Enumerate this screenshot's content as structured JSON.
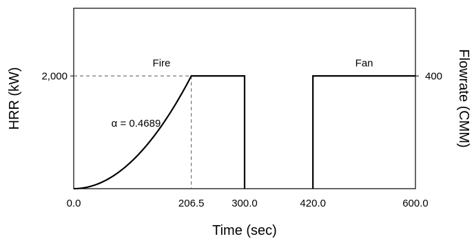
{
  "chart_data": {
    "type": "line",
    "xlabel": "Time (sec)",
    "ylabel_left": "HRR (kW)",
    "ylabel_right": "Flowrate (CMM)",
    "xlim": [
      0,
      600
    ],
    "ylim_left": [
      0,
      3200
    ],
    "ylim_right": [
      0,
      640
    ],
    "x_ticks": [
      {
        "value": 0,
        "label": "0.0"
      },
      {
        "value": 206.5,
        "label": "206.5"
      },
      {
        "value": 300,
        "label": "300.0"
      },
      {
        "value": 420,
        "label": "420.0"
      },
      {
        "value": 600,
        "label": "600.0"
      }
    ],
    "y_ticks_left": [
      {
        "value": 2000,
        "label": "2,000"
      }
    ],
    "y_ticks_right": [
      {
        "value": 400,
        "label": "400"
      }
    ],
    "series": [
      {
        "name": "Fire",
        "axis": "left",
        "segments": [
          {
            "kind": "t-squared",
            "x_start": 0,
            "x_end": 206.5,
            "alpha": 0.4689
          },
          {
            "kind": "step",
            "points": [
              [
                206.5,
                2000
              ],
              [
                300,
                2000
              ],
              [
                300,
                0
              ]
            ]
          }
        ]
      },
      {
        "name": "Fan",
        "axis": "right",
        "segments": [
          {
            "kind": "step",
            "points": [
              [
                420,
                0
              ],
              [
                420,
                400
              ],
              [
                600,
                400
              ]
            ]
          }
        ]
      }
    ],
    "annotations": [
      {
        "text": "α = 0.4689",
        "x": 100,
        "y": 1100,
        "axis": "left"
      }
    ],
    "guides": [
      {
        "from": [
          0,
          2000
        ],
        "to": [
          206.5,
          2000
        ]
      },
      {
        "from": [
          206.5,
          2000
        ],
        "to": [
          206.5,
          0
        ]
      }
    ],
    "grid": false,
    "legend": "none"
  }
}
